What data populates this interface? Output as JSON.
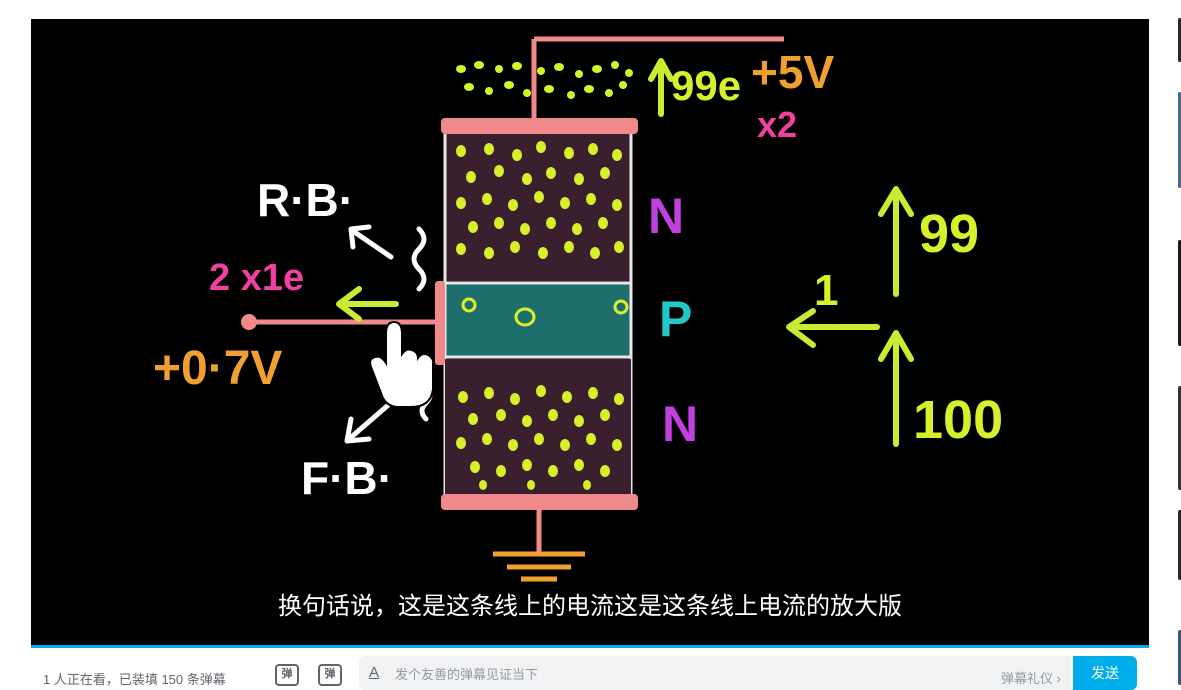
{
  "video": {
    "subtitle": "换句话说，这是这条线上的电流这是这条线上电流的放大版",
    "board": {
      "collector_count": "99e",
      "collector_voltage": "+5V",
      "multiplier": "x2",
      "layer_top": "N",
      "layer_mid": "P",
      "layer_bottom": "N",
      "reverse_bias": "R·B·",
      "base_current": "2 x1e",
      "base_voltage": "+0·7V",
      "forward_bias": "F·B·",
      "right_top": "99",
      "right_left": "1",
      "right_bottom": "100"
    }
  },
  "progress": {
    "played_fraction": 1.0,
    "color": "#00aeec"
  },
  "danmaku_bar": {
    "viewer_info": "1 人正在看，已装填 150 条弹幕",
    "toggle_label": "弹",
    "settings_label": "弹",
    "style_icon_label": "A",
    "input_placeholder": "发个友善的弹幕见证当下",
    "etiquette_link": "弹幕礼仪 ›",
    "send_label": "发送"
  },
  "colors": {
    "accent": "#00aeec",
    "board_pink": "#f08a8a",
    "electron_yellow": "#d8f02a",
    "n_label": "#c040e0",
    "p_label": "#20c8c8",
    "orange": "#f0a030",
    "magenta": "#f040a0"
  }
}
